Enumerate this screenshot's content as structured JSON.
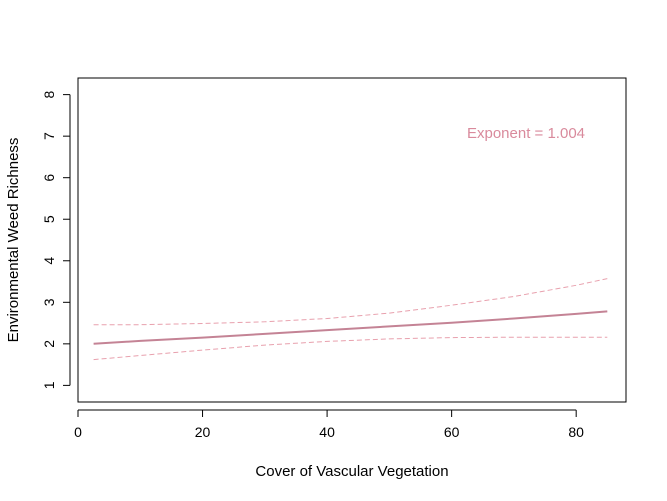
{
  "chart_data": {
    "type": "line",
    "title": "",
    "xlabel": "Cover of Vascular Vegetation",
    "ylabel": "Environmental Weed Richness",
    "xlim": [
      0,
      88
    ],
    "ylim": [
      0.6,
      8.4
    ],
    "x_ticks": [
      0,
      20,
      40,
      60,
      80
    ],
    "y_ticks": [
      1,
      2,
      3,
      4,
      5,
      6,
      7,
      8
    ],
    "x_tick_labels": [
      "0",
      "20",
      "40",
      "60",
      "80"
    ],
    "y_tick_labels": [
      "1",
      "2",
      "3",
      "4",
      "5",
      "6",
      "7",
      "8"
    ],
    "grid": false,
    "annotation": "Exponent =  1.004",
    "series": [
      {
        "role": "fit",
        "style": "solid",
        "color": "#c48395",
        "x": [
          2.5,
          10,
          20,
          30,
          40,
          50,
          60,
          70,
          80,
          85
        ],
        "y": [
          2.0,
          2.07,
          2.15,
          2.24,
          2.33,
          2.42,
          2.51,
          2.61,
          2.72,
          2.78
        ]
      },
      {
        "role": "upper-bound",
        "style": "dashed",
        "color": "#e8a0ad",
        "x": [
          2.5,
          10,
          20,
          30,
          40,
          50,
          60,
          70,
          80,
          85
        ],
        "y": [
          2.46,
          2.46,
          2.49,
          2.53,
          2.61,
          2.74,
          2.93,
          3.14,
          3.41,
          3.57
        ]
      },
      {
        "role": "lower-bound",
        "style": "dashed",
        "color": "#e8a0ad",
        "x": [
          2.5,
          10,
          20,
          30,
          40,
          50,
          60,
          70,
          80,
          85
        ],
        "y": [
          1.62,
          1.72,
          1.85,
          1.97,
          2.06,
          2.12,
          2.15,
          2.16,
          2.16,
          2.16
        ]
      }
    ]
  },
  "colors": {
    "fit": "#c48395",
    "bounds": "#e8a0ad",
    "annotation": "#d98a9c"
  }
}
